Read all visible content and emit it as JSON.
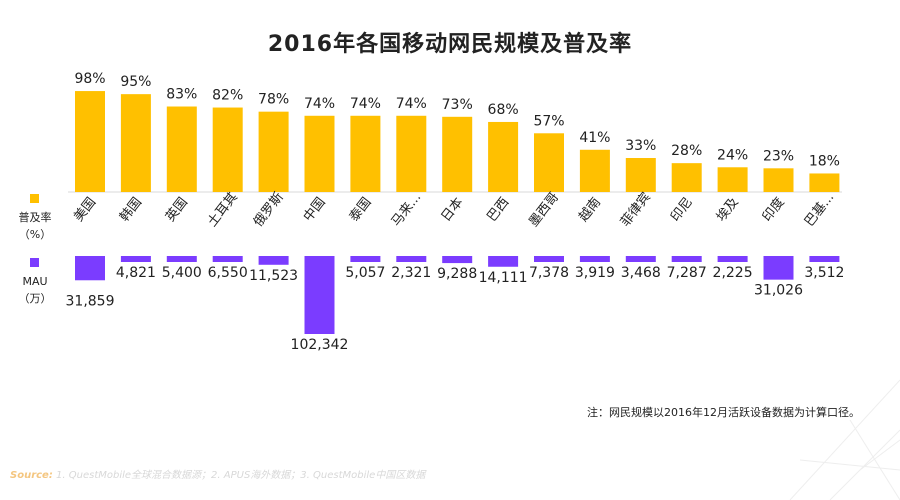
{
  "chart_data": {
    "type": "bar",
    "title": "2016年各国移动网民规模及普及率",
    "categories": [
      "美国",
      "韩国",
      "英国",
      "土耳其",
      "俄罗斯",
      "中国",
      "泰国",
      "马来...",
      "日本",
      "巴西",
      "墨西哥",
      "越南",
      "菲律宾",
      "印尼",
      "埃及",
      "印度",
      "巴基..."
    ],
    "series": [
      {
        "name": "普及率（%）",
        "color": "#ffc000",
        "values": [
          98,
          95,
          83,
          82,
          78,
          74,
          74,
          74,
          73,
          68,
          57,
          41,
          33,
          28,
          24,
          23,
          18
        ],
        "labels": [
          "98%",
          "95%",
          "83%",
          "82%",
          "78%",
          "74%",
          "74%",
          "74%",
          "73%",
          "68%",
          "57%",
          "41%",
          "33%",
          "28%",
          "24%",
          "23%",
          "18%"
        ]
      },
      {
        "name": "MAU（万）",
        "color": "#7b3cff",
        "values": [
          31859,
          4821,
          5400,
          6550,
          11523,
          102342,
          5057,
          2321,
          9288,
          14111,
          7378,
          3919,
          3468,
          7287,
          2225,
          31026,
          3512
        ],
        "labels": [
          "31,859",
          "4,821",
          "5,400",
          "6,550",
          "11,523",
          "102,342",
          "5,057",
          "2,321",
          "9,288",
          "14,111",
          "7,378",
          "3,919",
          "3,468",
          "7,287",
          "2,225",
          "31,026",
          "3,512"
        ]
      }
    ],
    "legend": [
      {
        "label_line1": "普及率",
        "label_line2": "（%）",
        "color": "#ffc000"
      },
      {
        "label_line1": "MAU",
        "label_line2": "（万）",
        "color": "#7b3cff"
      }
    ],
    "ylim_top": [
      0,
      100
    ],
    "ylim_bottom": [
      0,
      102342
    ]
  },
  "note": "注：网民规模以2016年12月活跃设备数据为计算口径。",
  "source": {
    "label": "Source:",
    "text": "1. QuestMobile全球混合数据源；2. APUS海外数据；3. QuestMobile中国区数据"
  }
}
